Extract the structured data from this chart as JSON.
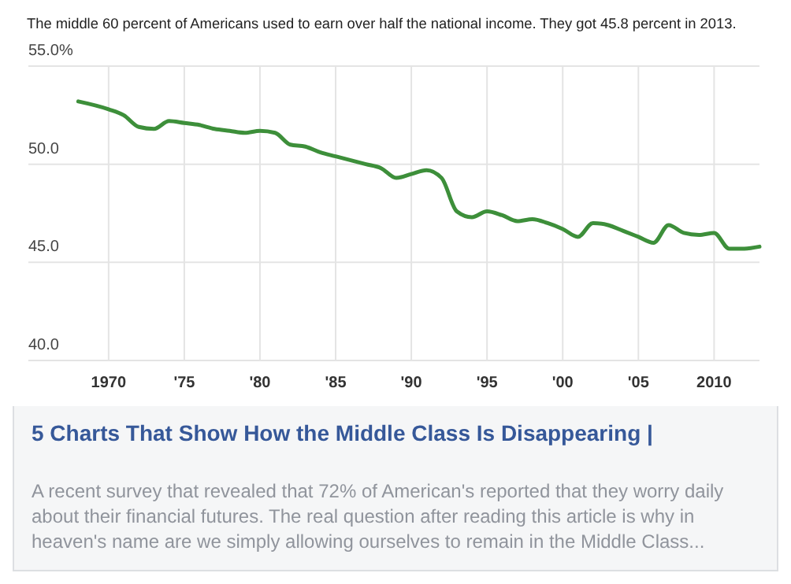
{
  "chart_data": {
    "type": "line",
    "title": "The middle 60 percent of Americans used to earn over half the national income. They got 45.8 percent in 2013.",
    "x": [
      1968,
      1970,
      1971,
      1972,
      1973,
      1974,
      1975,
      1976,
      1977,
      1978,
      1979,
      1980,
      1981,
      1982,
      1983,
      1984,
      1985,
      1986,
      1987,
      1988,
      1989,
      1990,
      1991,
      1992,
      1993,
      1994,
      1995,
      1996,
      1997,
      1998,
      1999,
      2000,
      2001,
      2002,
      2003,
      2004,
      2005,
      2006,
      2007,
      2008,
      2009,
      2010,
      2011,
      2012,
      2013
    ],
    "series": [
      {
        "color": "#3d8f3a",
        "values": [
          53.2,
          52.8,
          52.5,
          51.9,
          51.8,
          52.2,
          52.1,
          52.0,
          51.8,
          51.7,
          51.6,
          51.7,
          51.6,
          51.0,
          50.9,
          50.6,
          50.4,
          50.2,
          50.0,
          49.8,
          49.3,
          49.5,
          49.7,
          49.3,
          47.6,
          47.3,
          47.6,
          47.4,
          47.1,
          47.2,
          47.0,
          46.7,
          46.3,
          47.0,
          46.9,
          46.6,
          46.3,
          46.0,
          46.9,
          46.5,
          46.4,
          46.5,
          45.7,
          45.7,
          45.8
        ]
      }
    ],
    "xlim": [
      1964.7,
      2013
    ],
    "xticks": [
      {
        "value": 1970,
        "label": "1970"
      },
      {
        "value": 1975,
        "label": "'75"
      },
      {
        "value": 1980,
        "label": "'80"
      },
      {
        "value": 1985,
        "label": "'85"
      },
      {
        "value": 1990,
        "label": "'90"
      },
      {
        "value": 1995,
        "label": "'95"
      },
      {
        "value": 2000,
        "label": "'00"
      },
      {
        "value": 2005,
        "label": "'05"
      },
      {
        "value": 2010,
        "label": "2010"
      }
    ],
    "ylim": [
      40,
      55
    ],
    "yticks": [
      {
        "value": 40,
        "label": "40.0"
      },
      {
        "value": 45,
        "label": "45.0"
      },
      {
        "value": 50,
        "label": "50.0"
      },
      {
        "value": 55,
        "label": "55.0%"
      }
    ],
    "grid": true,
    "line_style": "solid",
    "marker": "none",
    "annotations": [
      "5 Charts That Show How the Middle Class Is Disappearing |",
      "A recent survey that revealed that 72% of American's reported that they worry daily about their financial futures. The real question after reading this article is why in heaven's name are we simply allowing ourselves to remain in the Middle Class..."
    ]
  }
}
